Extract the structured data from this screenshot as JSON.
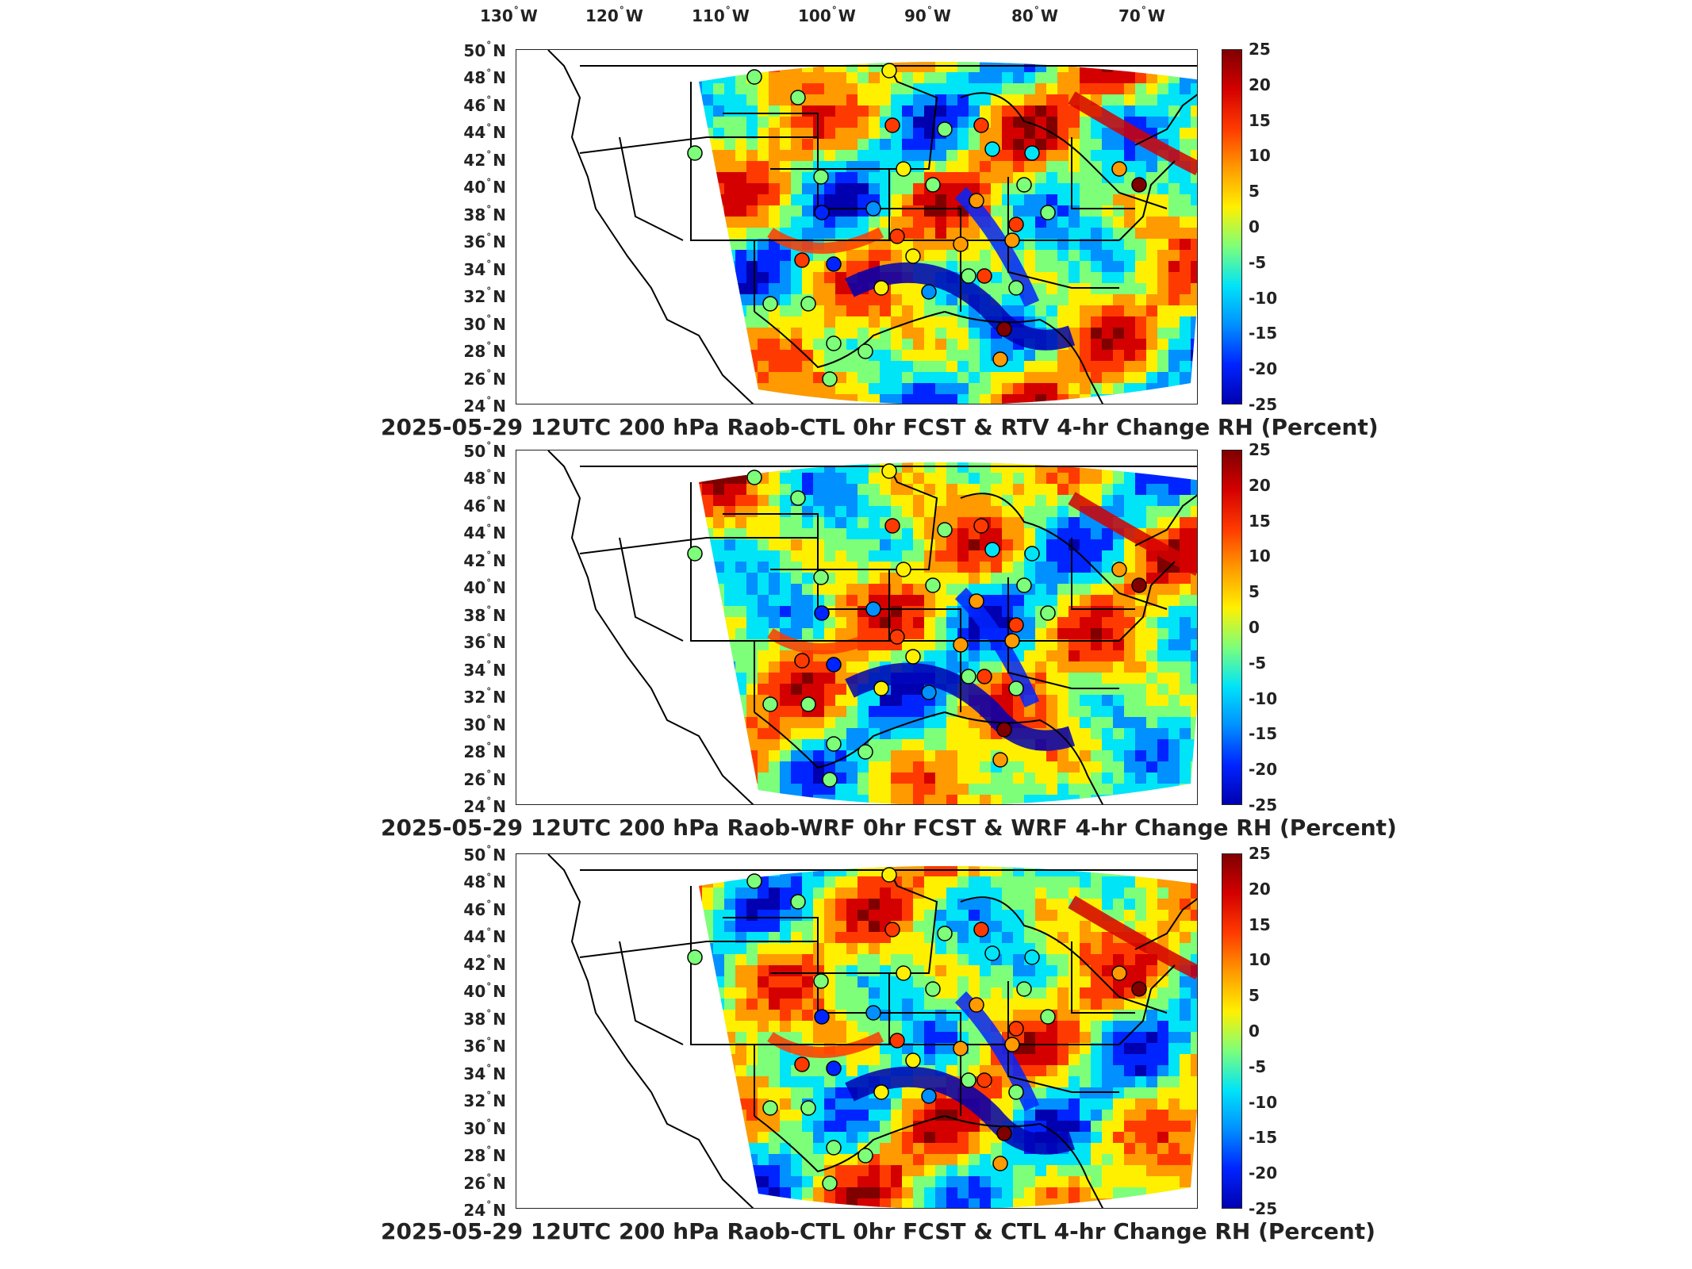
{
  "longitude_labels": [
    {
      "deg": "130",
      "dir": "W"
    },
    {
      "deg": "120",
      "dir": "W"
    },
    {
      "deg": "110",
      "dir": "W"
    },
    {
      "deg": "100",
      "dir": "W"
    },
    {
      "deg": "90",
      "dir": "W"
    },
    {
      "deg": "80",
      "dir": "W"
    },
    {
      "deg": "70",
      "dir": "W"
    }
  ],
  "latitude_labels": [
    {
      "deg": "50",
      "dir": "N"
    },
    {
      "deg": "48",
      "dir": "N"
    },
    {
      "deg": "46",
      "dir": "N"
    },
    {
      "deg": "44",
      "dir": "N"
    },
    {
      "deg": "42",
      "dir": "N"
    },
    {
      "deg": "40",
      "dir": "N"
    },
    {
      "deg": "38",
      "dir": "N"
    },
    {
      "deg": "36",
      "dir": "N"
    },
    {
      "deg": "34",
      "dir": "N"
    },
    {
      "deg": "32",
      "dir": "N"
    },
    {
      "deg": "30",
      "dir": "N"
    },
    {
      "deg": "28",
      "dir": "N"
    },
    {
      "deg": "26",
      "dir": "N"
    },
    {
      "deg": "24",
      "dir": "N"
    }
  ],
  "colorbar": {
    "ticks": [
      "25",
      "20",
      "15",
      "10",
      "5",
      "0",
      "-5",
      "-10",
      "-15",
      "-20",
      "-25"
    ],
    "colors": [
      "#800000",
      "#d40000",
      "#ff3a00",
      "#ff9a00",
      "#fff000",
      "#7dff7a",
      "#00e4f8",
      "#0090ff",
      "#0024ff",
      "#0000b0"
    ]
  },
  "panels": [
    {
      "title": "2025-05-29 12UTC 200 hPa Raob-CTL 0hr FCST & RTV 4-hr Change RH (Percent)"
    },
    {
      "title": "2025-05-29 12UTC 200 hPa Raob-WRF 0hr FCST & WRF 4-hr Change RH (Percent)"
    },
    {
      "title": "2025-05-29 12UTC 200 hPa Raob-CTL 0hr FCST & CTL 4-hr Change RH (Percent)"
    }
  ]
}
